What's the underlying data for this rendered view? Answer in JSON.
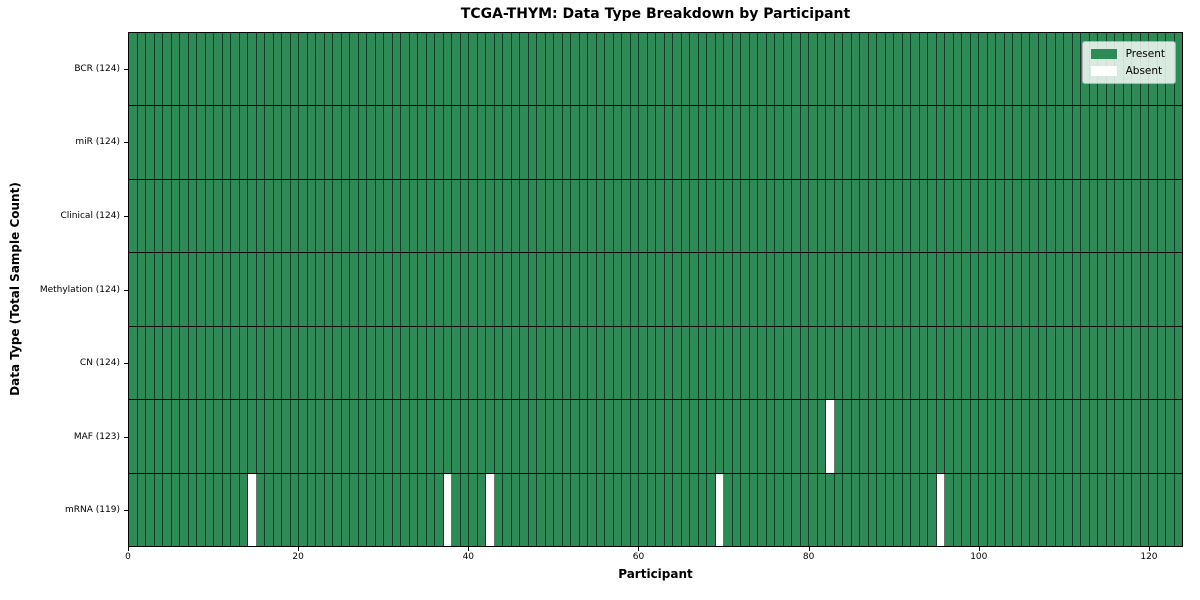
{
  "chart_data": {
    "type": "heatmap",
    "title": "TCGA-THYM: Data Type Breakdown by Participant",
    "xlabel": "Participant",
    "ylabel": "Data Type (Total Sample Count)",
    "x_ticks": [
      0,
      20,
      40,
      60,
      80,
      100,
      120
    ],
    "xlim": [
      0,
      124
    ],
    "n_participants": 124,
    "rows": [
      {
        "label": "BCR (124)",
        "total": 124,
        "absent_participants": []
      },
      {
        "label": "miR (124)",
        "total": 124,
        "absent_participants": []
      },
      {
        "label": "Clinical (124)",
        "total": 124,
        "absent_participants": []
      },
      {
        "label": "Methylation (124)",
        "total": 124,
        "absent_participants": []
      },
      {
        "label": "CN (124)",
        "total": 124,
        "absent_participants": []
      },
      {
        "label": "MAF (123)",
        "total": 123,
        "absent_participants": [
          82
        ]
      },
      {
        "label": "mRNA (119)",
        "total": 119,
        "absent_participants": [
          14,
          37,
          42,
          69,
          95
        ]
      }
    ],
    "legend": [
      {
        "label": "Present",
        "color": "#2e8b57"
      },
      {
        "label": "Absent",
        "color": "#ffffff"
      }
    ],
    "legend_position": "upper right",
    "colors": {
      "present": "#2e8b57",
      "absent": "#ffffff",
      "cell_divider": "rgba(0,0,0,0.55)",
      "row_divider": "#000000",
      "spine": "#000000"
    },
    "grid": true
  }
}
